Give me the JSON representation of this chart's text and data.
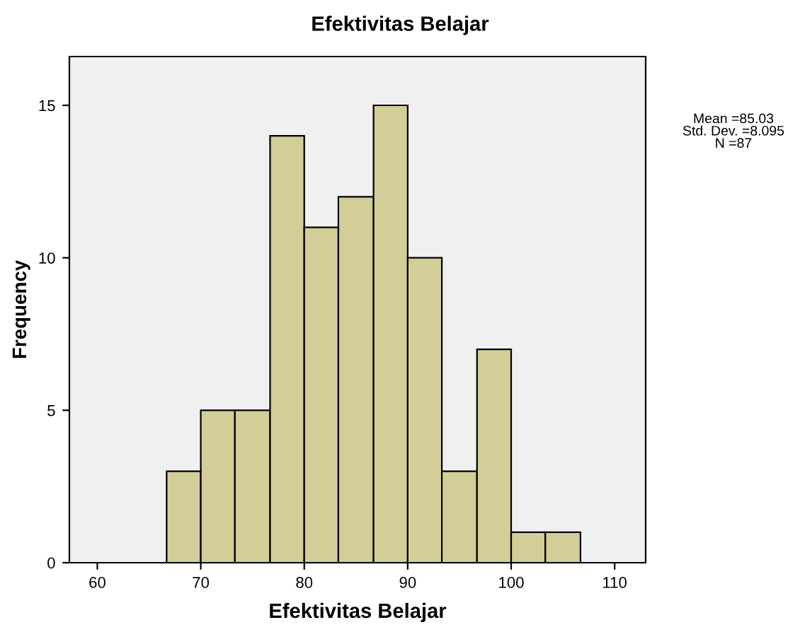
{
  "chart_data": {
    "type": "histogram",
    "title": "Efektivitas Belajar",
    "xlabel": "Efektivitas Belajar",
    "ylabel": "Frequency",
    "bins": [
      66.7,
      70,
      73.3,
      76.7,
      80,
      83.3,
      86.7,
      90,
      93.3,
      96.7,
      100,
      103.3,
      106.7
    ],
    "values": [
      3,
      5,
      5,
      14,
      11,
      12,
      15,
      10,
      3,
      7,
      1,
      1
    ],
    "color": "#d3ce97",
    "xlim": [
      57.3,
      113
    ],
    "xticks": [
      60,
      70,
      80,
      90,
      100,
      110
    ],
    "ylim": [
      0,
      16.6
    ],
    "yticks": [
      0,
      5,
      10,
      15
    ],
    "grid": false,
    "annotations": [
      "Mean =85.03\nStd. Dev. =8.095\nN =87"
    ]
  }
}
